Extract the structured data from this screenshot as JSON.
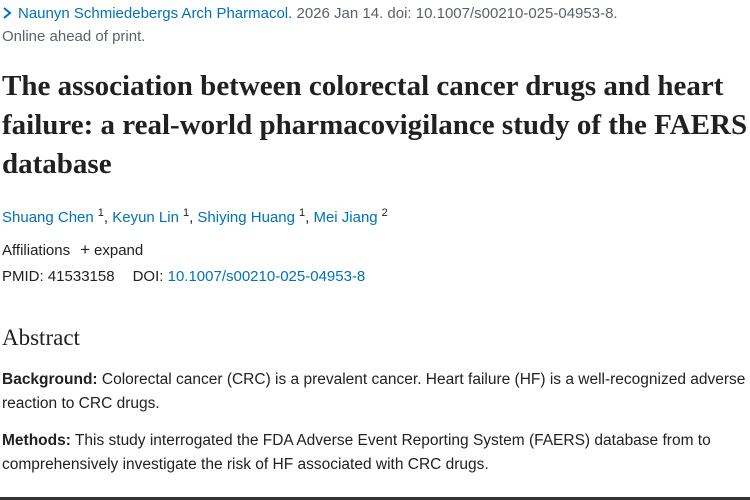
{
  "citation": {
    "journal": "Naunyn Schmiedebergs Arch Pharmacol.",
    "details": "2026 Jan 14. doi: 10.1007/s00210-025-04953-8.",
    "status": "Online ahead of print."
  },
  "title": "The association between colorectal cancer drugs and heart failure: a real-world pharmacovigilance study of the FAERS database",
  "authors": {
    "separator": ",",
    "list": [
      {
        "name": "Shuang Chen",
        "affiliation": 1
      },
      {
        "name": "Keyun Lin",
        "affiliation": 1
      },
      {
        "name": "Shiying Huang",
        "affiliation": 1
      },
      {
        "name": "Mei Jiang",
        "affiliation": 2
      }
    ]
  },
  "affiliations": {
    "label": "Affiliations",
    "toggle": "expand"
  },
  "identifiers": {
    "pmid_label": "PMID:",
    "pmid": "41533158",
    "doi_label": "DOI:",
    "doi": "10.1007/s00210-025-04953-8"
  },
  "abstract": {
    "heading": "Abstract",
    "sections": [
      {
        "label": "Background:",
        "text": "Colorectal cancer (CRC) is a prevalent cancer. Heart failure (HF) is a well-recognized adverse reaction to CRC drugs."
      },
      {
        "label": "Methods:",
        "text": "This study interrogated the FDA Adverse Event Reporting System (FAERS) database from to comprehensively investigate the risk of HF associated with CRC drugs."
      }
    ]
  }
}
